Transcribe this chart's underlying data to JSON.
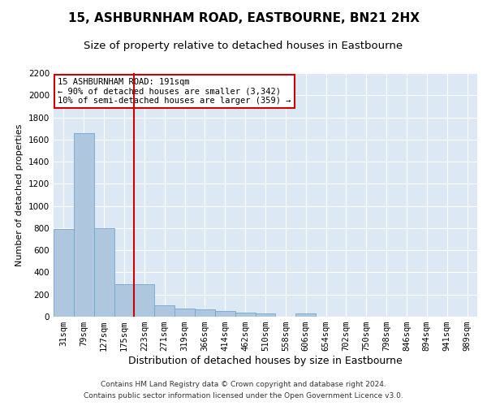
{
  "title": "15, ASHBURNHAM ROAD, EASTBOURNE, BN21 2HX",
  "subtitle": "Size of property relative to detached houses in Eastbourne",
  "xlabel": "Distribution of detached houses by size in Eastbourne",
  "ylabel": "Number of detached properties",
  "categories": [
    "31sqm",
    "79sqm",
    "127sqm",
    "175sqm",
    "223sqm",
    "271sqm",
    "319sqm",
    "366sqm",
    "414sqm",
    "462sqm",
    "510sqm",
    "558sqm",
    "606sqm",
    "654sqm",
    "702sqm",
    "750sqm",
    "798sqm",
    "846sqm",
    "894sqm",
    "941sqm",
    "989sqm"
  ],
  "values": [
    790,
    1660,
    800,
    290,
    290,
    100,
    70,
    65,
    55,
    40,
    30,
    0,
    30,
    0,
    0,
    0,
    0,
    0,
    0,
    0,
    0
  ],
  "bar_color": "#aec6de",
  "bar_edge_color": "#6fa8d0",
  "vline_x": 3.5,
  "vline_color": "#cc0000",
  "annotation_text": "15 ASHBURNHAM ROAD: 191sqm\n← 90% of detached houses are smaller (3,342)\n10% of semi-detached houses are larger (359) →",
  "annotation_box_color": "white",
  "annotation_box_edge_color": "#cc0000",
  "ylim": [
    0,
    2200
  ],
  "yticks": [
    0,
    200,
    400,
    600,
    800,
    1000,
    1200,
    1400,
    1600,
    1800,
    2000,
    2200
  ],
  "background_color": "#dce9f5",
  "footer_line1": "Contains HM Land Registry data © Crown copyright and database right 2024.",
  "footer_line2": "Contains public sector information licensed under the Open Government Licence v3.0.",
  "title_fontsize": 11,
  "subtitle_fontsize": 9.5,
  "xlabel_fontsize": 9,
  "ylabel_fontsize": 8,
  "annotation_fontsize": 7.5,
  "footer_fontsize": 6.5,
  "tick_fontsize": 7.5
}
